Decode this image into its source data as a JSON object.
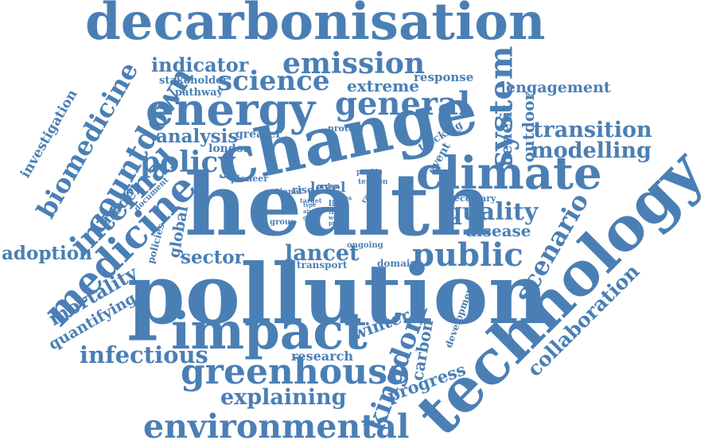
{
  "color": "#4a7fb5",
  "background": "#ffffff",
  "words": [
    "decarbonisation",
    "emission",
    "indicator",
    "science",
    "stakeholder",
    "response",
    "extreme",
    "engagement",
    "pathway",
    "energy",
    "general",
    "system",
    "benefit",
    "outdoor",
    "transition",
    "modelling",
    "analysis",
    "greater",
    "protect",
    "tracking",
    "london",
    "event",
    "change",
    "climate",
    "policy",
    "countdown",
    "biomedicine",
    "investigation",
    "internal",
    "model",
    "document",
    "pioneer",
    "national",
    "rise",
    "level",
    "profile",
    "tension",
    "range",
    "necessary",
    "health",
    "quality",
    "disease",
    "scenario",
    "adoption",
    "medicine",
    "global",
    "policies",
    "group",
    "type",
    "aim",
    "goal",
    "target",
    "order",
    "area",
    "life",
    "time",
    "work",
    "pick",
    "ongoing",
    "domain",
    "lancet",
    "transport",
    "public",
    "sector",
    "mortality",
    "quantifying",
    "pollution",
    "technology",
    "impact",
    "collaboration",
    "development",
    "winter",
    "kingdom",
    "carbon",
    "infectious",
    "research",
    "greenhouse",
    "progress",
    "explaining",
    "environmental"
  ]
}
